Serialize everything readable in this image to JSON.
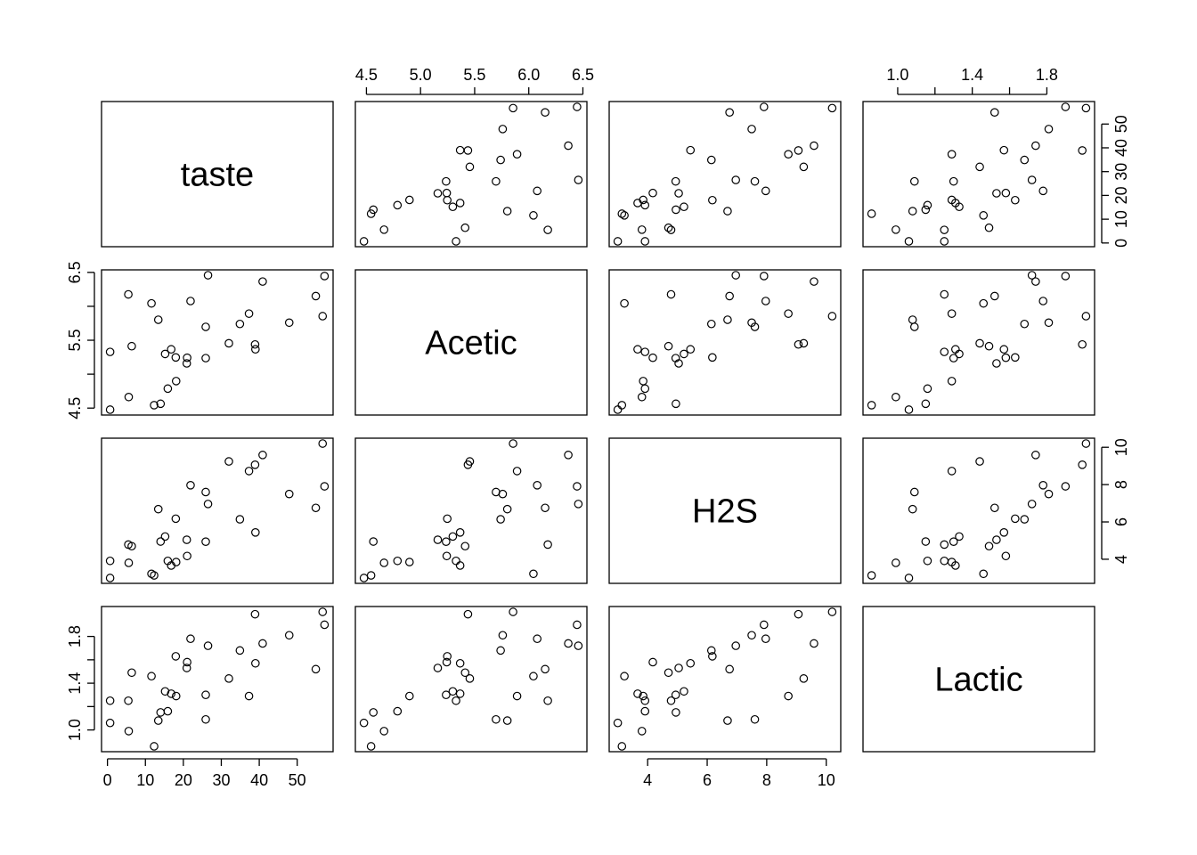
{
  "chart_data": {
    "type": "scatter",
    "variables": [
      "taste",
      "Acetic",
      "H2S",
      "Lactic"
    ],
    "axes": [
      {
        "ticks": [
          0,
          10,
          20,
          30,
          40,
          50
        ],
        "tick_labels": [
          "0",
          "10",
          "20",
          "30",
          "40",
          "50"
        ],
        "tick_sides": [
          "bottom",
          "right"
        ]
      },
      {
        "ticks": [
          4.5,
          5.0,
          5.5,
          6.0,
          6.5
        ],
        "tick_labels": [
          "4.5",
          "5.0",
          "5.5",
          "6.0",
          "6.5"
        ],
        "minor_ticks": [],
        "tick_sides": [
          "top",
          "left"
        ],
        "left_labels": [
          "4.5",
          "5.5",
          "6.5"
        ]
      },
      {
        "ticks": [
          4,
          6,
          8,
          10
        ],
        "tick_labels": [
          "4",
          "6",
          "8",
          "10"
        ],
        "tick_sides": [
          "bottom",
          "right"
        ]
      },
      {
        "ticks": [
          1.0,
          1.2,
          1.4,
          1.6,
          1.8
        ],
        "tick_labels": [
          "1.0",
          "1.4",
          "1.8"
        ],
        "tick_sides": [
          "top",
          "left"
        ]
      }
    ],
    "data": {
      "taste": [
        12.3,
        20.9,
        39.0,
        47.9,
        5.6,
        25.9,
        37.3,
        21.9,
        18.1,
        21.0,
        34.9,
        57.2,
        0.7,
        25.9,
        54.9,
        40.9,
        15.9,
        6.4,
        18.0,
        38.9,
        14.0,
        15.2,
        32.0,
        56.7,
        16.8,
        11.6,
        26.5,
        0.7,
        13.4,
        5.5
      ],
      "Acetic": [
        4.543,
        5.159,
        5.366,
        5.759,
        4.663,
        5.697,
        5.892,
        6.078,
        4.898,
        5.242,
        5.74,
        6.446,
        4.477,
        5.236,
        6.151,
        6.365,
        4.787,
        5.412,
        5.247,
        5.438,
        4.564,
        5.298,
        5.455,
        5.855,
        5.366,
        6.043,
        6.458,
        5.328,
        5.802,
        6.176
      ],
      "H2S": [
        3.135,
        5.043,
        5.438,
        7.496,
        3.807,
        7.601,
        8.726,
        7.966,
        3.85,
        4.174,
        6.142,
        7.908,
        2.996,
        4.942,
        6.752,
        9.588,
        3.912,
        4.7,
        6.174,
        9.064,
        4.949,
        5.22,
        9.242,
        10.199,
        3.664,
        3.219,
        6.962,
        3.912,
        6.685,
        4.787
      ],
      "Lactic": [
        0.86,
        1.53,
        1.57,
        1.81,
        0.99,
        1.09,
        1.29,
        1.78,
        1.29,
        1.58,
        1.68,
        1.9,
        1.06,
        1.3,
        1.52,
        1.74,
        1.16,
        1.49,
        1.63,
        1.99,
        1.15,
        1.33,
        1.44,
        2.01,
        1.31,
        1.46,
        1.72,
        1.25,
        1.08,
        1.25
      ]
    }
  }
}
